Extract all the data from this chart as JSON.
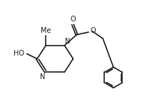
{
  "background": "#ffffff",
  "line_color": "#1a1a1a",
  "line_width": 1.2,
  "font_size": 7.0,
  "fig_width": 2.13,
  "fig_height": 1.53,
  "dpi": 100,
  "xlim": [
    0,
    10.5
  ],
  "ylim": [
    0,
    7.5
  ]
}
